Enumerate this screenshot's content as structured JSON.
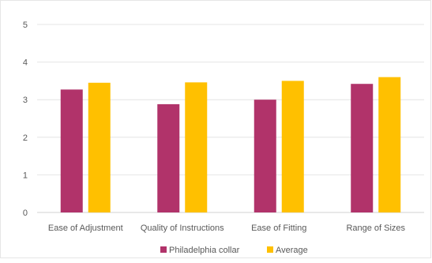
{
  "chart_data": {
    "type": "bar",
    "categories": [
      "Ease of Adjustment",
      "Quality of Instructions",
      "Ease of Fitting",
      "Range of Sizes"
    ],
    "series": [
      {
        "name": "Philadelphia collar",
        "values": [
          3.27,
          2.88,
          3.0,
          3.42
        ],
        "color": "#b1336a"
      },
      {
        "name": "Average",
        "values": [
          3.45,
          3.46,
          3.5,
          3.6
        ],
        "color": "#ffc000"
      }
    ],
    "yticks": [
      0,
      1,
      2,
      3,
      4,
      5
    ],
    "ylim": [
      0,
      5
    ],
    "grid": true,
    "legend_position": "bottom",
    "title": "",
    "xlabel": "",
    "ylabel": ""
  }
}
